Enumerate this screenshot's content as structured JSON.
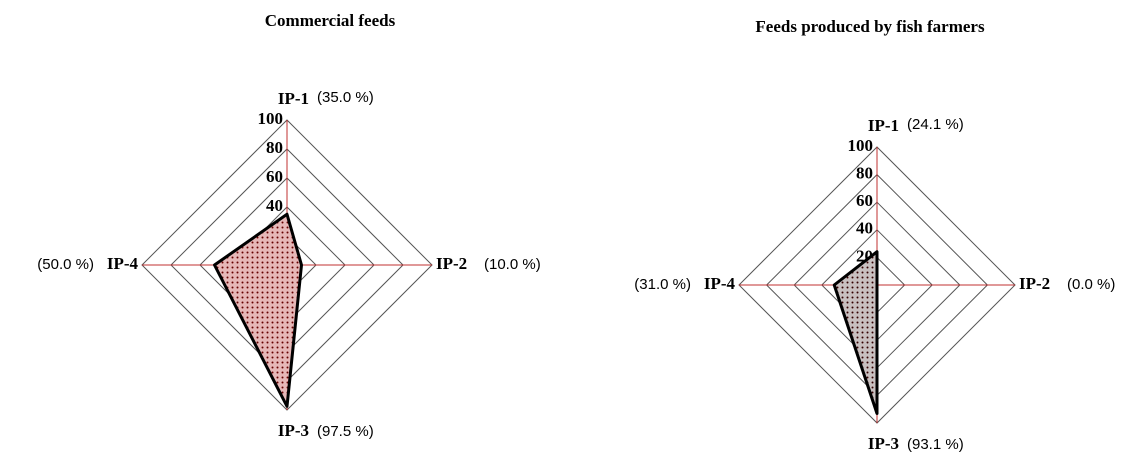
{
  "chart_data": [
    {
      "type": "radar",
      "title": "Commercial feeds",
      "categories": [
        "IP-1",
        "IP-2",
        "IP-3",
        "IP-4"
      ],
      "values": [
        35.0,
        10.0,
        97.5,
        50.0
      ],
      "value_labels": [
        "(35.0 %)",
        "(10.0 %)",
        "(97.5 %)",
        "(50.0 %)"
      ],
      "ylim": [
        0,
        100
      ],
      "yticks": [
        0,
        20,
        40,
        60,
        80,
        100
      ],
      "color": "#e6b8b8"
    },
    {
      "type": "radar",
      "title": "Feeds produced by fish farmers",
      "categories": [
        "IP-1",
        "IP-2",
        "IP-3",
        "IP-4"
      ],
      "values": [
        24.1,
        0.0,
        93.1,
        31.0
      ],
      "value_labels": [
        "(24.1 %)",
        "(0.0 %)",
        "(93.1 %)",
        "(31.0 %)"
      ],
      "ylim": [
        0,
        100
      ],
      "yticks": [
        0,
        20,
        40,
        60,
        80,
        100
      ],
      "color": "#c8c0c0"
    }
  ]
}
